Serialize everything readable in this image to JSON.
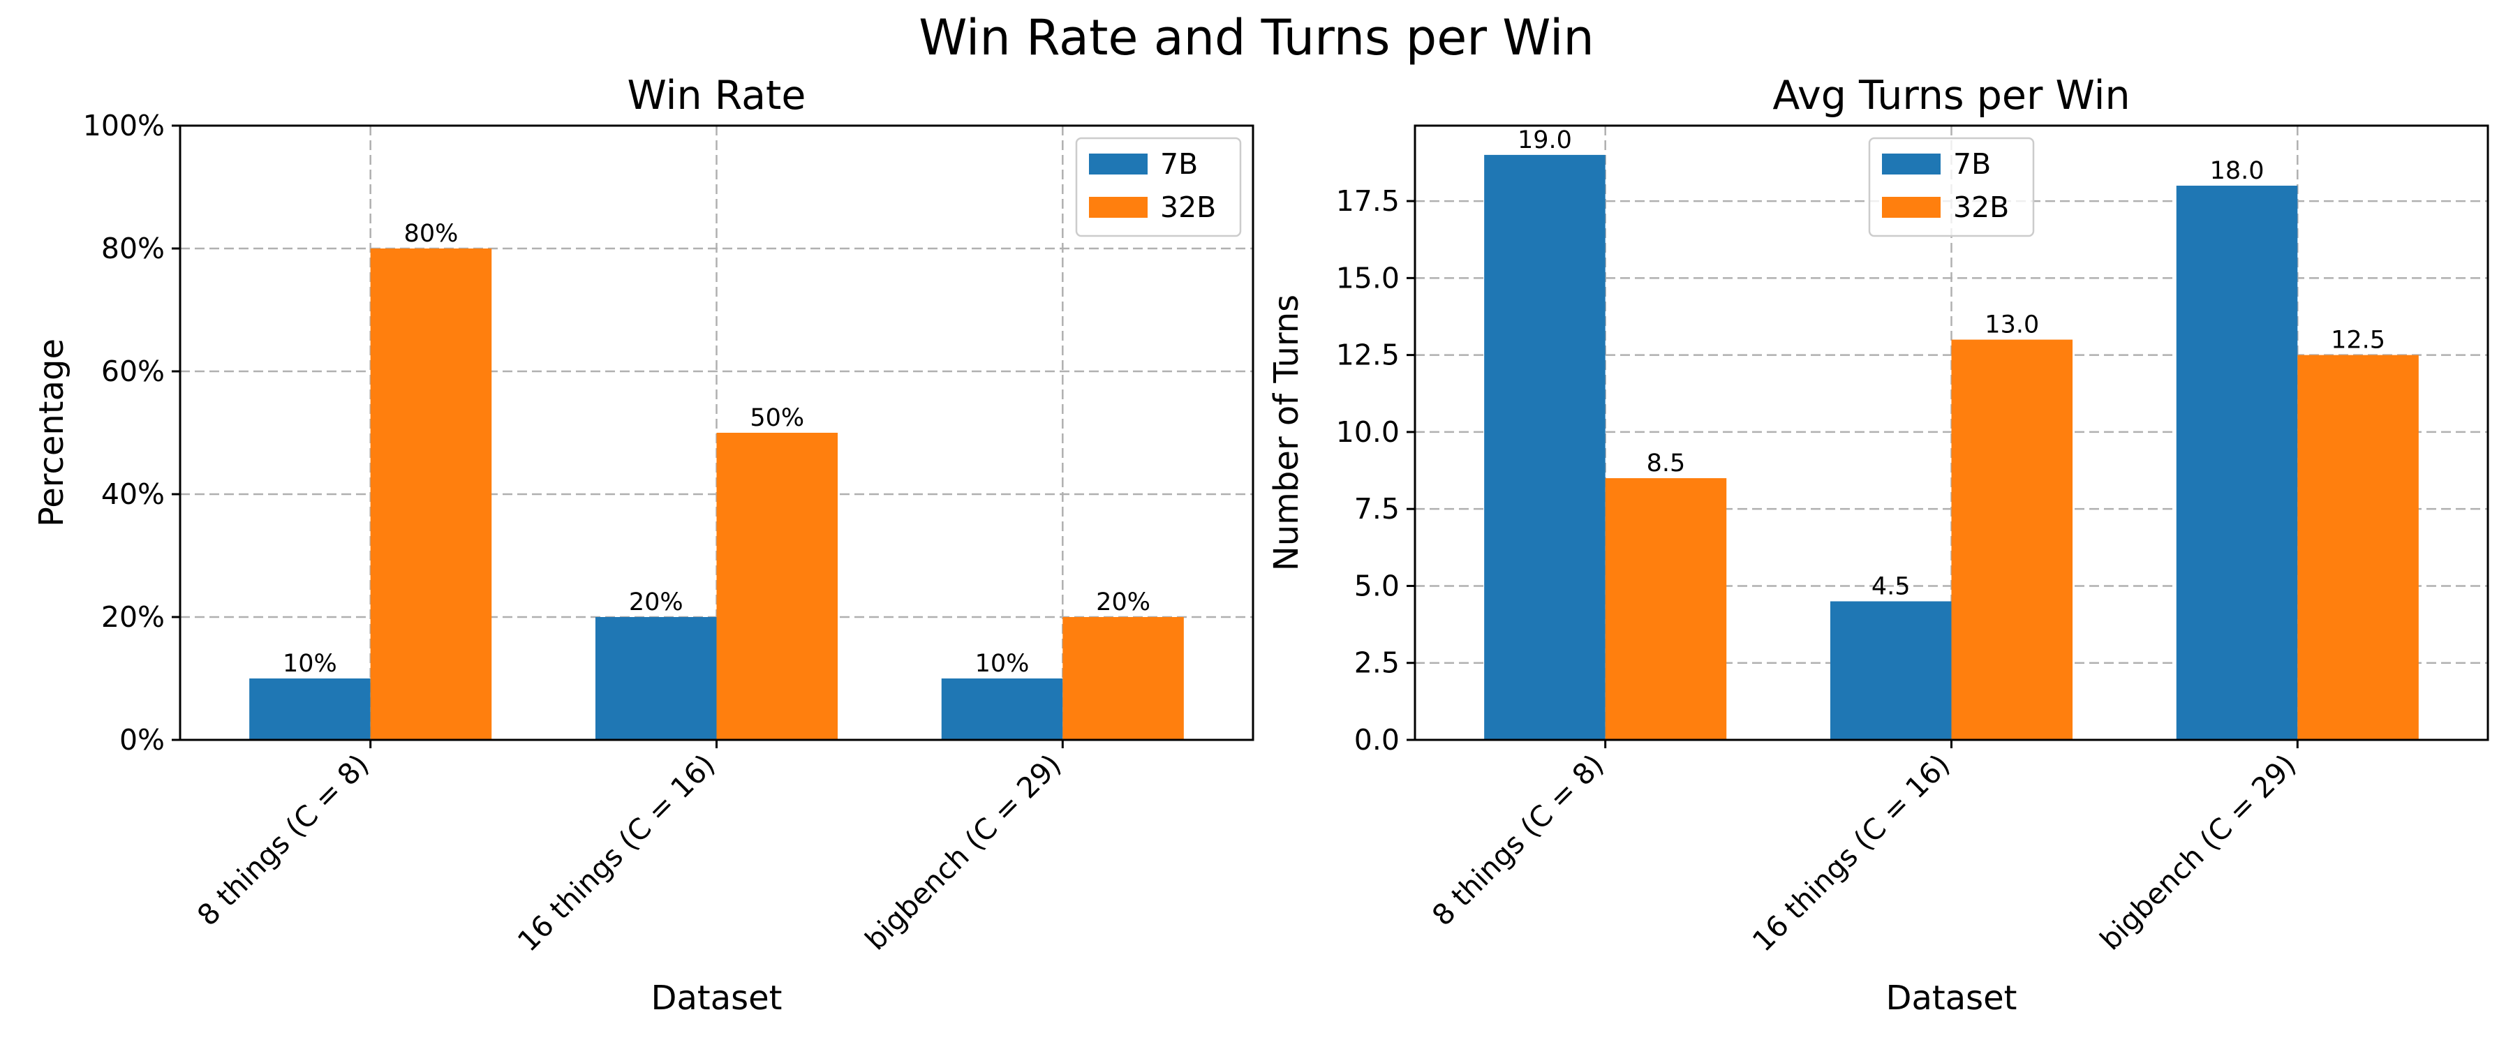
{
  "figure": {
    "title": "Win Rate and Turns per Win"
  },
  "chart_data": [
    {
      "type": "bar",
      "title": "Win Rate",
      "xlabel": "Dataset",
      "ylabel": "Percentage",
      "categories": [
        "8 things (C = 8)",
        "16 things (C = 16)",
        "bigbench (C = 29)"
      ],
      "series": [
        {
          "name": "7B",
          "color": "#1f77b4",
          "values": [
            10,
            20,
            10
          ],
          "labels": [
            "10%",
            "20%",
            "10%"
          ]
        },
        {
          "name": "32B",
          "color": "#ff7f0e",
          "values": [
            80,
            50,
            20
          ],
          "labels": [
            "80%",
            "50%",
            "20%"
          ]
        }
      ],
      "ylim": [
        0,
        100
      ],
      "yticks": [
        0,
        20,
        40,
        60,
        80,
        100
      ],
      "ytick_labels": [
        "0%",
        "20%",
        "40%",
        "60%",
        "80%",
        "100%"
      ],
      "grid": true,
      "legend_position": "top-right"
    },
    {
      "type": "bar",
      "title": "Avg Turns per Win",
      "xlabel": "Dataset",
      "ylabel": "Number of Turns",
      "categories": [
        "8 things (C = 8)",
        "16 things (C = 16)",
        "bigbench (C = 29)"
      ],
      "series": [
        {
          "name": "7B",
          "color": "#1f77b4",
          "values": [
            19.0,
            4.5,
            18.0
          ],
          "labels": [
            "19.0",
            "4.5",
            "18.0"
          ]
        },
        {
          "name": "32B",
          "color": "#ff7f0e",
          "values": [
            8.5,
            13.0,
            12.5
          ],
          "labels": [
            "8.5",
            "13.0",
            "12.5"
          ]
        }
      ],
      "ylim": [
        0,
        19.95
      ],
      "yticks": [
        0,
        2.5,
        5,
        7.5,
        10,
        12.5,
        15,
        17.5
      ],
      "ytick_labels": [
        "0.0",
        "2.5",
        "5.0",
        "7.5",
        "10.0",
        "12.5",
        "15.0",
        "17.5"
      ],
      "grid": true,
      "legend_position": "top-center"
    }
  ]
}
